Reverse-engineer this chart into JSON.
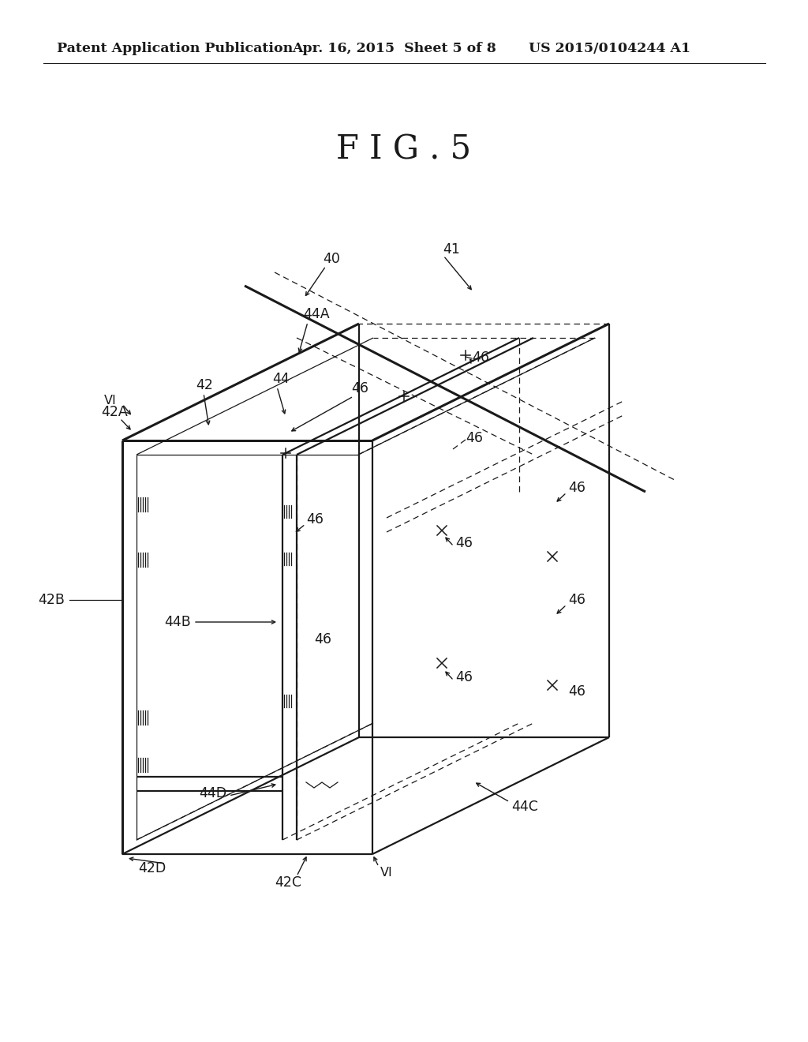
{
  "bg_color": "#ffffff",
  "line_color": "#1a1a1a",
  "header_left": "Patent Application Publication",
  "header_center": "Apr. 16, 2015  Sheet 5 of 8",
  "header_right": "US 2015/0104244 A1",
  "fig_title": "F I G . 5",
  "title_fontsize": 30,
  "header_fontsize": 12.5,
  "label_fontsize": 12.5,
  "lw_main": 1.6,
  "lw_thin": 0.9,
  "lw_thick": 2.2
}
